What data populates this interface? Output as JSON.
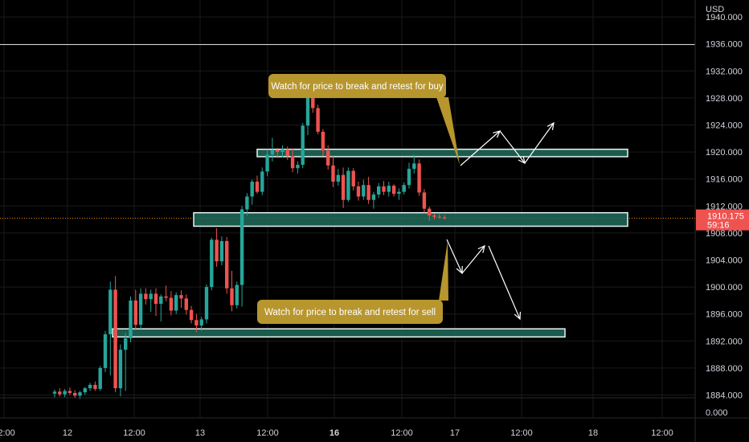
{
  "currency": "USD",
  "colors": {
    "background": "#000000",
    "up": "#26a69a",
    "down": "#ef5350",
    "zone_fill": "#1f6b5c",
    "zone_stroke": "#e8f5f1",
    "callout": "#b8962e",
    "price_tag": "#ef5350",
    "resistance_line": "#d9d9d9",
    "current_price_line": "#ff9800",
    "axis_text": "#d1d4dc",
    "arrow": "#ffffff"
  },
  "current_price": {
    "value": 1910.175,
    "label": "1910.175",
    "countdown": "59:16"
  },
  "callouts": {
    "buy": "Watch for price to break and retest for buy",
    "sell": "Watch for price to break and retest for sell"
  },
  "chart_data": {
    "type": "candlestick",
    "symbol_currency": "USD",
    "ylim": [
      1882.5,
      1944.3
    ],
    "y_ticks": [
      "1884.000",
      "1888.000",
      "1892.000",
      "1896.000",
      "1900.000",
      "1904.000",
      "1908.000",
      "1912.000",
      "1916.000",
      "1920.000",
      "1924.000",
      "1928.000",
      "1932.000",
      "1936.000",
      "1940.000"
    ],
    "bottom_tick": "0.000",
    "x_ticks": [
      {
        "label": "12:00",
        "bold": false
      },
      {
        "label": "12",
        "bold": false
      },
      {
        "label": "12:00",
        "bold": false
      },
      {
        "label": "13",
        "bold": false
      },
      {
        "label": "12:00",
        "bold": false
      },
      {
        "label": "16",
        "bold": true
      },
      {
        "label": "12:00",
        "bold": false
      },
      {
        "label": "17",
        "bold": false
      },
      {
        "label": "12:00",
        "bold": false
      },
      {
        "label": "18",
        "bold": false
      },
      {
        "label": "12:00",
        "bold": false
      }
    ],
    "horizontal_line": 1935.9,
    "zones": [
      {
        "name": "upper",
        "from": 1919.3,
        "to": 1920.4
      },
      {
        "name": "middle",
        "from": 1909.0,
        "to": 1911.0
      },
      {
        "name": "lower",
        "from": 1892.6,
        "to": 1893.8
      }
    ],
    "candles": [
      [
        1884.2,
        1884.8,
        1883.6,
        1884.5
      ],
      [
        1884.5,
        1885.0,
        1883.8,
        1884.1
      ],
      [
        1884.1,
        1884.9,
        1883.7,
        1884.6
      ],
      [
        1884.6,
        1885.1,
        1884.0,
        1884.3
      ],
      [
        1884.3,
        1884.7,
        1883.5,
        1883.9
      ],
      [
        1883.9,
        1884.6,
        1883.4,
        1884.4
      ],
      [
        1884.4,
        1885.2,
        1884.0,
        1885.0
      ],
      [
        1885.0,
        1885.8,
        1884.6,
        1885.5
      ],
      [
        1885.5,
        1886.0,
        1884.6,
        1884.9
      ],
      [
        1884.9,
        1888.3,
        1884.6,
        1888.0
      ],
      [
        1888.0,
        1893.5,
        1887.4,
        1893.0
      ],
      [
        1893.0,
        1900.8,
        1886.9,
        1899.6
      ],
      [
        1899.6,
        1901.6,
        1884.4,
        1885.0
      ],
      [
        1885.0,
        1891.5,
        1883.8,
        1890.7
      ],
      [
        1890.7,
        1893.2,
        1884.6,
        1892.4
      ],
      [
        1892.4,
        1898.6,
        1891.8,
        1898.0
      ],
      [
        1898.0,
        1899.6,
        1893.6,
        1894.4
      ],
      [
        1894.4,
        1899.8,
        1893.6,
        1899.0
      ],
      [
        1899.0,
        1899.8,
        1897.4,
        1898.2
      ],
      [
        1898.2,
        1899.6,
        1896.3,
        1899.0
      ],
      [
        1899.0,
        1899.8,
        1895.7,
        1897.5
      ],
      [
        1897.5,
        1898.9,
        1894.9,
        1898.6
      ],
      [
        1898.6,
        1900.2,
        1897.9,
        1898.4
      ],
      [
        1898.4,
        1899.4,
        1895.8,
        1896.5
      ],
      [
        1896.5,
        1899.2,
        1896.0,
        1898.8
      ],
      [
        1898.8,
        1899.5,
        1896.9,
        1898.3
      ],
      [
        1898.3,
        1898.9,
        1895.9,
        1896.6
      ],
      [
        1896.6,
        1897.2,
        1894.6,
        1895.1
      ],
      [
        1895.1,
        1896.0,
        1893.3,
        1894.3
      ],
      [
        1894.3,
        1895.6,
        1893.5,
        1895.2
      ],
      [
        1895.2,
        1900.4,
        1894.6,
        1900.0
      ],
      [
        1900.0,
        1907.3,
        1899.5,
        1907.0
      ],
      [
        1907.0,
        1908.7,
        1903.0,
        1903.8
      ],
      [
        1903.8,
        1907.5,
        1903.2,
        1906.8
      ],
      [
        1906.8,
        1907.4,
        1899.0,
        1899.8
      ],
      [
        1899.8,
        1902.4,
        1896.4,
        1897.3
      ],
      [
        1897.3,
        1900.8,
        1896.8,
        1900.3
      ],
      [
        1900.3,
        1912.0,
        1897.1,
        1911.5
      ],
      [
        1911.5,
        1913.9,
        1910.6,
        1913.4
      ],
      [
        1913.4,
        1915.9,
        1912.2,
        1915.6
      ],
      [
        1915.6,
        1916.5,
        1913.8,
        1914.1
      ],
      [
        1914.1,
        1917.7,
        1913.6,
        1917.1
      ],
      [
        1917.1,
        1920.4,
        1916.4,
        1919.6
      ],
      [
        1919.6,
        1922.1,
        1918.6,
        1920.3
      ],
      [
        1920.3,
        1920.6,
        1919.1,
        1920.0
      ],
      [
        1920.0,
        1921.0,
        1919.2,
        1920.4
      ],
      [
        1920.4,
        1920.8,
        1918.8,
        1919.4
      ],
      [
        1919.4,
        1920.5,
        1917.0,
        1917.6
      ],
      [
        1917.6,
        1918.6,
        1916.8,
        1918.1
      ],
      [
        1918.1,
        1924.3,
        1917.6,
        1923.9
      ],
      [
        1923.9,
        1929.2,
        1922.5,
        1928.8
      ],
      [
        1928.8,
        1929.6,
        1925.8,
        1926.5
      ],
      [
        1926.5,
        1927.0,
        1922.6,
        1923.0
      ],
      [
        1923.0,
        1923.4,
        1919.4,
        1920.2
      ],
      [
        1920.2,
        1921.0,
        1917.4,
        1918.0
      ],
      [
        1918.0,
        1919.5,
        1914.8,
        1915.6
      ],
      [
        1915.6,
        1917.5,
        1915.0,
        1916.6
      ],
      [
        1916.6,
        1917.7,
        1911.7,
        1912.9
      ],
      [
        1912.9,
        1917.7,
        1912.6,
        1917.2
      ],
      [
        1917.2,
        1917.6,
        1914.3,
        1914.9
      ],
      [
        1914.9,
        1915.6,
        1912.8,
        1913.4
      ],
      [
        1913.4,
        1915.9,
        1912.9,
        1915.1
      ],
      [
        1915.1,
        1916.3,
        1912.3,
        1912.9
      ],
      [
        1912.9,
        1914.1,
        1911.6,
        1913.7
      ],
      [
        1913.7,
        1915.4,
        1913.2,
        1914.9
      ],
      [
        1914.9,
        1915.7,
        1913.6,
        1914.1
      ],
      [
        1914.1,
        1915.6,
        1913.4,
        1915.0
      ],
      [
        1915.0,
        1915.2,
        1913.4,
        1913.8
      ],
      [
        1913.8,
        1914.6,
        1912.9,
        1914.1
      ],
      [
        1914.1,
        1915.5,
        1913.7,
        1915.1
      ],
      [
        1915.1,
        1918.4,
        1914.6,
        1917.5
      ],
      [
        1917.5,
        1919.6,
        1916.8,
        1918.3
      ],
      [
        1918.3,
        1918.9,
        1913.5,
        1914.0
      ],
      [
        1914.0,
        1914.5,
        1911.0,
        1911.6
      ],
      [
        1911.6,
        1911.9,
        1909.8,
        1910.6
      ],
      [
        1910.6,
        1910.9,
        1910.0,
        1910.4
      ],
      [
        1910.4,
        1910.8,
        1910.1,
        1910.3
      ],
      [
        1910.3,
        1910.6,
        1910.0,
        1910.175
      ]
    ]
  }
}
